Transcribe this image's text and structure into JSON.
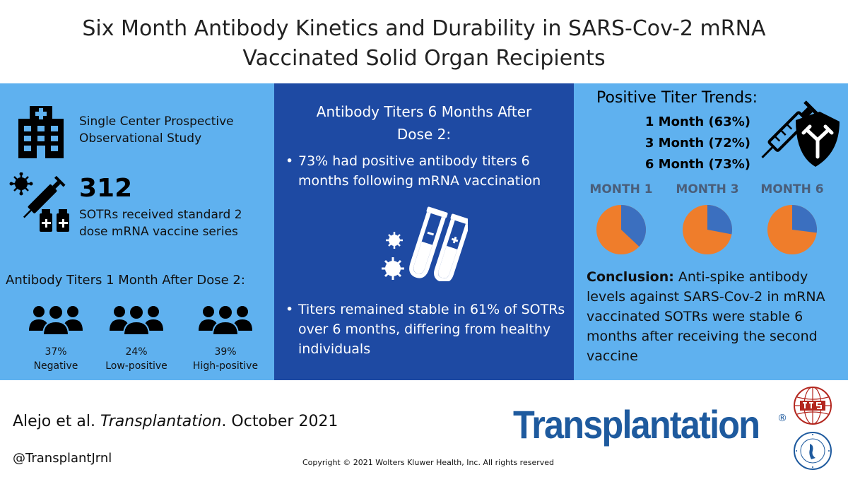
{
  "title": {
    "line1": "Six Month Antibody Kinetics and Durability in SARS-Cov-2 mRNA",
    "line2": "Vaccinated Solid Organ Recipients"
  },
  "left": {
    "study_line1": "Single Center Prospective",
    "study_line2": "Observational Study",
    "count": "312",
    "count_line1": "SOTRs received standard 2",
    "count_line2": "dose mRNA vaccine series",
    "titers_heading": "Antibody Titers 1 Month After Dose 2:",
    "groups": [
      {
        "pct": "37%",
        "label": "Negative"
      },
      {
        "pct": "24%",
        "label": "Low-positive"
      },
      {
        "pct": "39%",
        "label": "High-positive"
      }
    ]
  },
  "middle": {
    "heading_line1": "Antibody Titers 6 Months After",
    "heading_line2": "Dose 2:",
    "bullet_char": "•",
    "bullet1": "73% had positive antibody titers 6 months following mRNA vaccination",
    "bullet2": "Titers remained stable in 61% of SOTRs over 6 months, differing from healthy individuals"
  },
  "right": {
    "trends_heading": "Positive Titer Trends:",
    "trends": [
      "1 Month (63%)",
      "3 Month (72%)",
      "6 Month (73%)"
    ],
    "months": [
      {
        "label": "MONTH 1",
        "positive_fraction": 0.63
      },
      {
        "label": "MONTH 3",
        "positive_fraction": 0.72
      },
      {
        "label": "MONTH 6",
        "positive_fraction": 0.73
      }
    ],
    "conclusion_label": "Conclusion:",
    "conclusion_text": " Anti-spike antibody levels against SARS-Cov-2 in mRNA vaccinated SOTRs were stable 6 months after receiving the second vaccine"
  },
  "footer": {
    "citation_authors": "Alejo et al. ",
    "citation_journal": "Transplantation",
    "citation_date": ". October 2021",
    "handle": "@TransplantJrnl",
    "copyright": "Copyright © 2021  Wolters Kluwer Health, Inc. All rights reserved",
    "brand": "Transplantation",
    "brand_mark": "®"
  },
  "colors": {
    "light_blue": "#5fb1ef",
    "dark_blue": "#1e4aa3",
    "pie_positive": "#ef7d2b",
    "pie_negative": "#3b6fbf",
    "brand_blue": "#1e5a9e"
  }
}
